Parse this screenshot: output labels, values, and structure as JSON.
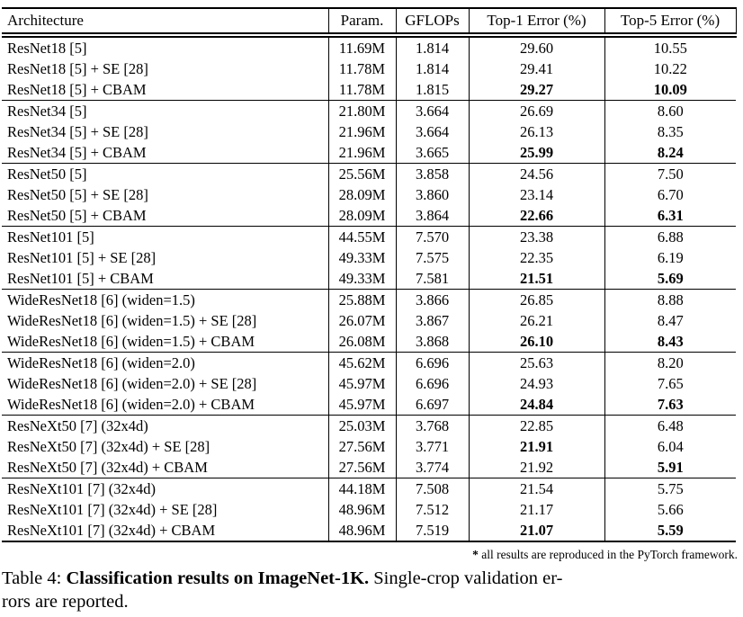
{
  "colors": {
    "text": "#000000",
    "background": "#ffffff",
    "rule": "#000000"
  },
  "table": {
    "columns": [
      "Architecture",
      "Param.",
      "GFLOPs",
      "Top-1 Error (%)",
      "Top-5 Error (%)"
    ],
    "groups": [
      {
        "rows": [
          {
            "arch": "ResNet18 [5]",
            "param": "11.69M",
            "gflops": "1.814",
            "top1": "29.60",
            "top5": "10.55",
            "top1_bold": false,
            "top5_bold": false
          },
          {
            "arch": "ResNet18 [5] + SE [28]",
            "param": "11.78M",
            "gflops": "1.814",
            "top1": "29.41",
            "top5": "10.22",
            "top1_bold": false,
            "top5_bold": false
          },
          {
            "arch": "ResNet18 [5] + CBAM",
            "param": "11.78M",
            "gflops": "1.815",
            "top1": "29.27",
            "top5": "10.09",
            "top1_bold": true,
            "top5_bold": true
          }
        ]
      },
      {
        "rows": [
          {
            "arch": "ResNet34 [5]",
            "param": "21.80M",
            "gflops": "3.664",
            "top1": "26.69",
            "top5": "8.60",
            "top1_bold": false,
            "top5_bold": false
          },
          {
            "arch": "ResNet34 [5] + SE [28]",
            "param": "21.96M",
            "gflops": "3.664",
            "top1": "26.13",
            "top5": "8.35",
            "top1_bold": false,
            "top5_bold": false
          },
          {
            "arch": "ResNet34 [5] + CBAM",
            "param": "21.96M",
            "gflops": "3.665",
            "top1": "25.99",
            "top5": "8.24",
            "top1_bold": true,
            "top5_bold": true
          }
        ]
      },
      {
        "rows": [
          {
            "arch": "ResNet50 [5]",
            "param": "25.56M",
            "gflops": "3.858",
            "top1": "24.56",
            "top5": "7.50",
            "top1_bold": false,
            "top5_bold": false
          },
          {
            "arch": "ResNet50 [5] + SE [28]",
            "param": "28.09M",
            "gflops": "3.860",
            "top1": "23.14",
            "top5": "6.70",
            "top1_bold": false,
            "top5_bold": false
          },
          {
            "arch": "ResNet50 [5] + CBAM",
            "param": "28.09M",
            "gflops": "3.864",
            "top1": "22.66",
            "top5": "6.31",
            "top1_bold": true,
            "top5_bold": true
          }
        ]
      },
      {
        "rows": [
          {
            "arch": "ResNet101 [5]",
            "param": "44.55M",
            "gflops": "7.570",
            "top1": "23.38",
            "top5": "6.88",
            "top1_bold": false,
            "top5_bold": false
          },
          {
            "arch": "ResNet101 [5] + SE [28]",
            "param": "49.33M",
            "gflops": "7.575",
            "top1": "22.35",
            "top5": "6.19",
            "top1_bold": false,
            "top5_bold": false
          },
          {
            "arch": "ResNet101 [5] + CBAM",
            "param": "49.33M",
            "gflops": "7.581",
            "top1": "21.51",
            "top5": "5.69",
            "top1_bold": true,
            "top5_bold": true
          }
        ]
      },
      {
        "rows": [
          {
            "arch": "WideResNet18 [6] (widen=1.5)",
            "param": "25.88M",
            "gflops": "3.866",
            "top1": "26.85",
            "top5": "8.88",
            "top1_bold": false,
            "top5_bold": false
          },
          {
            "arch": "WideResNet18 [6] (widen=1.5) + SE [28]",
            "param": "26.07M",
            "gflops": "3.867",
            "top1": "26.21",
            "top5": "8.47",
            "top1_bold": false,
            "top5_bold": false
          },
          {
            "arch": "WideResNet18 [6] (widen=1.5) + CBAM",
            "param": "26.08M",
            "gflops": "3.868",
            "top1": "26.10",
            "top5": "8.43",
            "top1_bold": true,
            "top5_bold": true
          }
        ]
      },
      {
        "rows": [
          {
            "arch": "WideResNet18 [6] (widen=2.0)",
            "param": "45.62M",
            "gflops": "6.696",
            "top1": "25.63",
            "top5": "8.20",
            "top1_bold": false,
            "top5_bold": false
          },
          {
            "arch": "WideResNet18 [6] (widen=2.0) + SE [28]",
            "param": "45.97M",
            "gflops": "6.696",
            "top1": "24.93",
            "top5": "7.65",
            "top1_bold": false,
            "top5_bold": false
          },
          {
            "arch": "WideResNet18 [6] (widen=2.0) + CBAM",
            "param": "45.97M",
            "gflops": "6.697",
            "top1": "24.84",
            "top5": "7.63",
            "top1_bold": true,
            "top5_bold": true
          }
        ]
      },
      {
        "rows": [
          {
            "arch": "ResNeXt50 [7] (32x4d)",
            "param": "25.03M",
            "gflops": "3.768",
            "top1": "22.85",
            "top5": "6.48",
            "top1_bold": false,
            "top5_bold": false
          },
          {
            "arch": "ResNeXt50 [7] (32x4d) + SE [28]",
            "param": "27.56M",
            "gflops": "3.771",
            "top1": "21.91",
            "top5": "6.04",
            "top1_bold": true,
            "top5_bold": false
          },
          {
            "arch": "ResNeXt50 [7] (32x4d) + CBAM",
            "param": "27.56M",
            "gflops": "3.774",
            "top1": "21.92",
            "top5": "5.91",
            "top1_bold": false,
            "top5_bold": true
          }
        ]
      },
      {
        "rows": [
          {
            "arch": "ResNeXt101 [7] (32x4d)",
            "param": "44.18M",
            "gflops": "7.508",
            "top1": "21.54",
            "top5": "5.75",
            "top1_bold": false,
            "top5_bold": false
          },
          {
            "arch": "ResNeXt101 [7] (32x4d) + SE [28]",
            "param": "48.96M",
            "gflops": "7.512",
            "top1": "21.17",
            "top5": "5.66",
            "top1_bold": false,
            "top5_bold": false
          },
          {
            "arch": "ResNeXt101 [7] (32x4d) + CBAM",
            "param": "48.96M",
            "gflops": "7.519",
            "top1": "21.07",
            "top5": "5.59",
            "top1_bold": true,
            "top5_bold": true
          }
        ]
      }
    ]
  },
  "footnote": {
    "marker": "*",
    "text": "all results are reproduced in the PyTorch framework."
  },
  "caption": {
    "label": "Table 4:",
    "bold_title": "Classification results on ImageNet-1K.",
    "line1_rest": "Single-crop validation er-",
    "line2": "rors are reported."
  }
}
